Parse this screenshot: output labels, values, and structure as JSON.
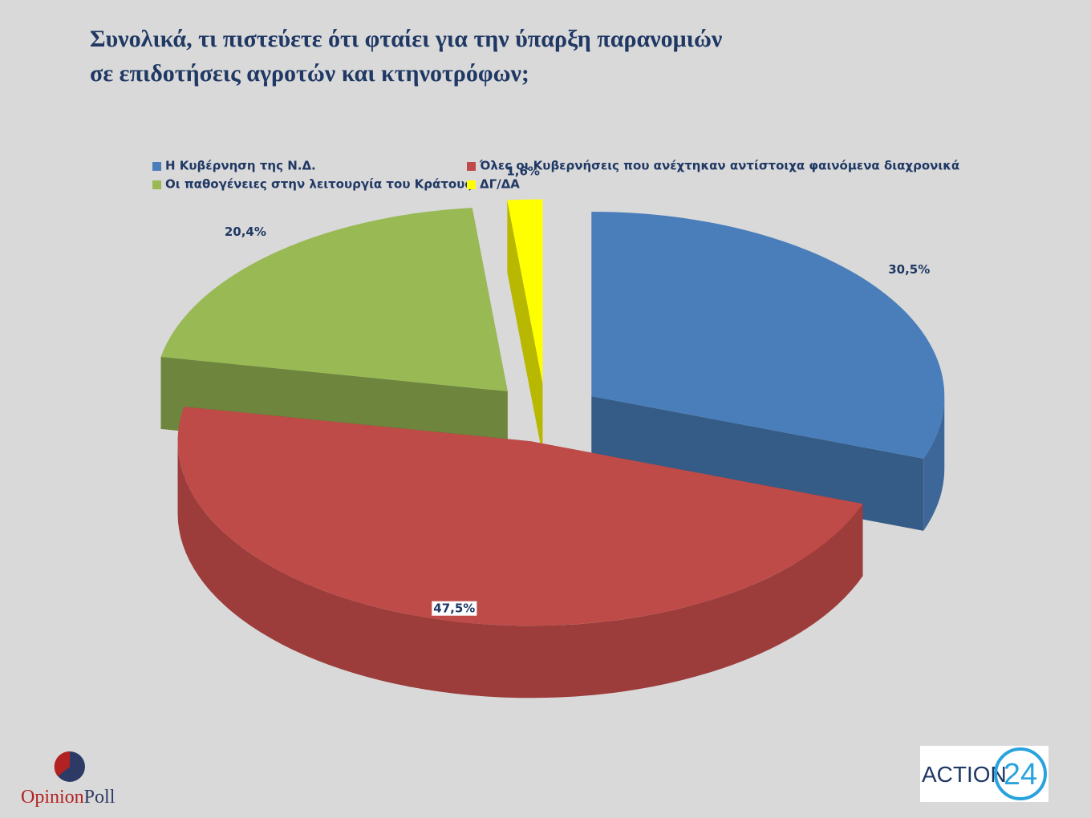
{
  "chart_data": {
    "type": "pie",
    "title": "Συνολικά, τι πιστεύετε ότι φταίει για την ύπαρξη παρανομιών σε επιδοτήσεις αγροτών και κτηνοτρόφων;",
    "categories": [
      "Η Κυβέρνηση της Ν.Δ.",
      "Όλες οι Κυβερνήσεις που ανέχτηκαν αντίστοιχα φαινόμενα διαχρονικά",
      "Οι παθογένειες στην λειτουργία του Κράτους",
      "ΔΓ/ΔΑ"
    ],
    "values": [
      30.5,
      47.5,
      20.4,
      1.6
    ],
    "value_labels": [
      "30,5%",
      "47,5%",
      "20,4%",
      "1,6%"
    ],
    "colors": [
      "#4a7ebb",
      "#be4b48",
      "#98b954",
      "#ffff00"
    ],
    "legend": "top"
  },
  "logos": {
    "left": [
      "Opinion",
      "Poll"
    ],
    "right": [
      "ACTION",
      "24"
    ]
  }
}
